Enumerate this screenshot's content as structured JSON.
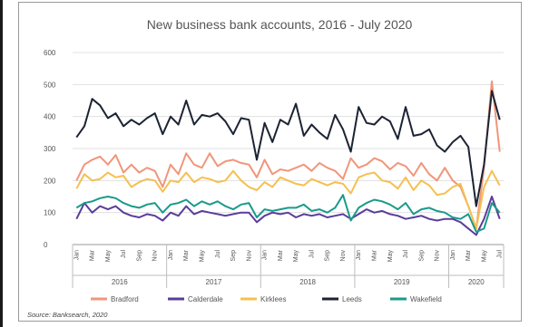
{
  "chart_data": {
    "type": "line",
    "title": "New business bank accounts, 2016 - July 2020",
    "source": "Source: Banksearch, 2020",
    "ylim": [
      0,
      600
    ],
    "yticks": [
      0,
      100,
      200,
      300,
      400,
      500,
      600
    ],
    "grid": "horizontal",
    "legend_position": "bottom",
    "x_tick_labels": [
      "Jan",
      "Mar",
      "May",
      "Jul",
      "Sep",
      "Nov",
      "Jan",
      "Mar",
      "May",
      "Jul",
      "Sep",
      "Nov",
      "Jan",
      "Mar",
      "May",
      "Jul",
      "Sep",
      "Nov",
      "Jan",
      "Mar",
      "May",
      "Jul",
      "Sep",
      "Nov",
      "Jan",
      "Mar",
      "May",
      "Jul"
    ],
    "years": [
      "2016",
      "2017",
      "2018",
      "2019",
      "2020"
    ],
    "months_count": 55,
    "series": [
      {
        "name": "Bradford",
        "color": "#f0967a",
        "values": [
          200,
          250,
          265,
          275,
          250,
          280,
          225,
          250,
          225,
          240,
          230,
          180,
          250,
          220,
          285,
          250,
          240,
          285,
          245,
          260,
          265,
          255,
          250,
          210,
          265,
          220,
          235,
          230,
          240,
          250,
          230,
          255,
          240,
          230,
          205,
          270,
          240,
          250,
          270,
          260,
          235,
          255,
          245,
          215,
          255,
          220,
          200,
          240,
          200,
          180,
          120,
          50,
          240,
          510,
          290
        ]
      },
      {
        "name": "Calderdale",
        "color": "#5a3d9a",
        "values": [
          80,
          130,
          100,
          120,
          110,
          120,
          100,
          90,
          85,
          95,
          90,
          75,
          100,
          90,
          120,
          95,
          105,
          100,
          95,
          90,
          95,
          100,
          100,
          70,
          90,
          100,
          95,
          100,
          85,
          95,
          90,
          95,
          85,
          90,
          95,
          80,
          95,
          110,
          100,
          105,
          95,
          90,
          80,
          85,
          90,
          80,
          75,
          80,
          80,
          70,
          50,
          30,
          80,
          150,
          80
        ]
      },
      {
        "name": "Kirklees",
        "color": "#f5c050",
        "values": [
          175,
          220,
          200,
          205,
          225,
          210,
          215,
          180,
          195,
          205,
          200,
          165,
          200,
          195,
          225,
          195,
          210,
          205,
          195,
          200,
          230,
          200,
          180,
          170,
          195,
          180,
          210,
          200,
          190,
          185,
          205,
          195,
          185,
          195,
          190,
          160,
          210,
          220,
          225,
          200,
          195,
          175,
          210,
          170,
          200,
          185,
          155,
          160,
          180,
          190,
          120,
          50,
          180,
          230,
          185
        ]
      },
      {
        "name": "Leeds",
        "color": "#1b2333",
        "values": [
          335,
          370,
          455,
          435,
          395,
          410,
          370,
          390,
          375,
          395,
          410,
          345,
          400,
          375,
          450,
          375,
          405,
          400,
          410,
          385,
          345,
          395,
          390,
          265,
          380,
          320,
          390,
          375,
          440,
          340,
          375,
          350,
          330,
          405,
          360,
          290,
          430,
          380,
          375,
          400,
          385,
          330,
          430,
          340,
          345,
          360,
          310,
          290,
          320,
          340,
          305,
          120,
          250,
          480,
          390
        ]
      },
      {
        "name": "Wakefield",
        "color": "#1a9a8a",
        "values": [
          115,
          130,
          135,
          145,
          150,
          145,
          130,
          120,
          115,
          125,
          130,
          100,
          125,
          130,
          140,
          120,
          135,
          125,
          135,
          120,
          110,
          125,
          130,
          85,
          110,
          105,
          110,
          115,
          115,
          125,
          105,
          110,
          100,
          115,
          155,
          75,
          115,
          130,
          140,
          135,
          125,
          110,
          130,
          95,
          110,
          115,
          105,
          100,
          85,
          80,
          95,
          40,
          50,
          130,
          100
        ]
      }
    ]
  }
}
